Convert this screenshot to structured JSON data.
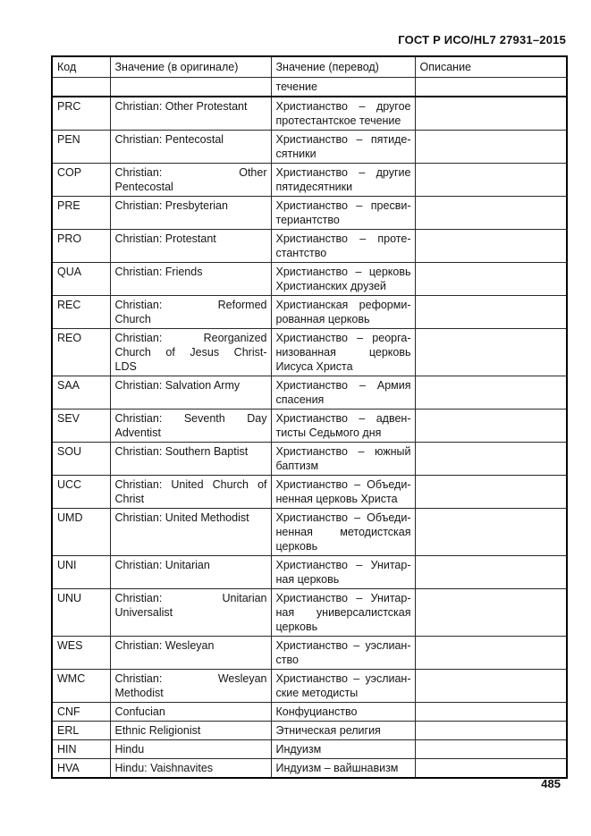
{
  "page": {
    "doc_header": "ГОСТ Р ИСО/HL7 27931–2015",
    "page_number": "485"
  },
  "table": {
    "columns": [
      "Код",
      "Значение (в оригинале)",
      "Значение (перевод)",
      "Описание"
    ],
    "rows": [
      {
        "code": "",
        "original": "",
        "translation": "течение",
        "description": "",
        "continuation": true
      },
      {
        "code": "PRC",
        "original": "Christian: Other Protestant",
        "translation": "Христианство – другое\nпротестантское течение",
        "description": ""
      },
      {
        "code": "PEN",
        "original": "Christian: Pentecostal",
        "translation": "Христианство – пятиде-\nсятники",
        "description": ""
      },
      {
        "code": "COP",
        "original": "Christian: Other\nPentecostal",
        "translation": "Христианство – другие\nпятидесятники",
        "description": ""
      },
      {
        "code": "PRE",
        "original": "Christian: Presbyterian",
        "translation": "Христианство – пресви-\nтериантство",
        "description": ""
      },
      {
        "code": "PRO",
        "original": "Christian: Protestant",
        "translation": "Христианство – проте-\nстантство",
        "description": ""
      },
      {
        "code": "QUA",
        "original": "Christian: Friends",
        "translation": "Христианство – церковь\nХристианских друзей",
        "description": ""
      },
      {
        "code": "REC",
        "original": "Christian: Reformed\nChurch",
        "translation": "Христианская реформи-\nрованная церковь",
        "description": ""
      },
      {
        "code": "REO",
        "original": "Christian: Reorganized\nChurch of Jesus Christ-\nLDS",
        "translation": "Христианство – реорга-\nнизованная церковь\nИисуса Христа",
        "description": ""
      },
      {
        "code": "SAA",
        "original": "Christian: Salvation Army",
        "translation": "Христианство – Армия\nспасения",
        "description": ""
      },
      {
        "code": "SEV",
        "original": "Christian: Seventh Day\nAdventist",
        "translation": "Христианство – адвен-\nтисты Седьмого дня",
        "description": ""
      },
      {
        "code": "SOU",
        "original": "Christian: Southern Baptist",
        "translation": "Христианство – южный\nбаптизм",
        "description": ""
      },
      {
        "code": "UCC",
        "original": "Christian: United Church of\nChrist",
        "translation": "Христианство – Объеди-\nненная церковь Христа",
        "description": ""
      },
      {
        "code": "UMD",
        "original": "Christian: United Methodist",
        "translation": "Христианство – Объеди-\nненная методистская\nцерковь",
        "description": ""
      },
      {
        "code": "UNI",
        "original": "Christian: Unitarian",
        "translation": "Христианство – Унитар-\nная церковь",
        "description": ""
      },
      {
        "code": "UNU",
        "original": "Christian: Unitarian\nUniversalist",
        "translation": "Христианство – Унитар-\nная универсалистская\nцерковь",
        "description": ""
      },
      {
        "code": "WES",
        "original": "Christian: Wesleyan",
        "translation": "Христианство – уэслиан-\nство",
        "description": ""
      },
      {
        "code": "WMC",
        "original": "Christian: Wesleyan\nMethodist",
        "translation": "Христианство – уэслиан-\nские методисты",
        "description": ""
      },
      {
        "code": "CNF",
        "original": "Confucian",
        "translation": "Конфуцианство",
        "description": ""
      },
      {
        "code": "ERL",
        "original": "Ethnic Religionist",
        "translation": "Этническая религия",
        "description": ""
      },
      {
        "code": "HIN",
        "original": "Hindu",
        "translation": "Индуизм",
        "description": ""
      },
      {
        "code": "HVA",
        "original": "Hindu: Vaishnavites",
        "translation": "Индуизм – вайшнавизм",
        "description": ""
      }
    ]
  }
}
